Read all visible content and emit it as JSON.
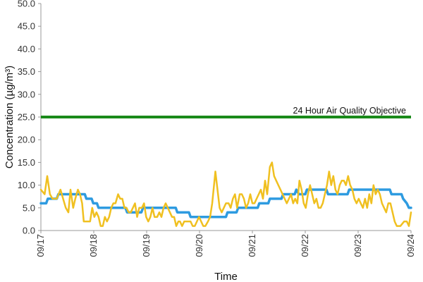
{
  "chart_data": {
    "type": "line",
    "xlabel": "Time",
    "ylabel": "Concentration (µg/m³)",
    "ylim": [
      0,
      50
    ],
    "yticks": [
      "0.0",
      "5.0",
      "10.0",
      "15.0",
      "20.0",
      "25.0",
      "30.0",
      "35.0",
      "40.0",
      "45.0",
      "50.0"
    ],
    "xlim": [
      0,
      7
    ],
    "xticks": [
      {
        "label": "09/17",
        "x": 0
      },
      {
        "label": "09/18",
        "x": 1
      },
      {
        "label": "09/19",
        "x": 2
      },
      {
        "label": "09/20",
        "x": 3
      },
      {
        "label": "09/21",
        "x": 4
      },
      {
        "label": "09/22",
        "x": 5
      },
      {
        "label": "09/23",
        "x": 6
      },
      {
        "label": "09/24",
        "x": 7
      }
    ],
    "grid": false,
    "reference_line": {
      "label": "24 Hour Air Quality Objective",
      "y": 25,
      "color": "#1a8a1a"
    },
    "series": [
      {
        "color": "#2e9be0",
        "points": [
          [
            0.0,
            6
          ],
          [
            0.1,
            6
          ],
          [
            0.13,
            7
          ],
          [
            0.3,
            7
          ],
          [
            0.33,
            8
          ],
          [
            0.83,
            8
          ],
          [
            0.86,
            7
          ],
          [
            0.96,
            7
          ],
          [
            0.99,
            6
          ],
          [
            1.06,
            6
          ],
          [
            1.09,
            5
          ],
          [
            1.6,
            5
          ],
          [
            1.63,
            4
          ],
          [
            1.9,
            4
          ],
          [
            1.93,
            5
          ],
          [
            2.55,
            5
          ],
          [
            2.58,
            4
          ],
          [
            2.8,
            4
          ],
          [
            2.83,
            3
          ],
          [
            3.5,
            3
          ],
          [
            3.53,
            4
          ],
          [
            3.7,
            4
          ],
          [
            3.73,
            5
          ],
          [
            4.1,
            5
          ],
          [
            4.13,
            6
          ],
          [
            4.3,
            6
          ],
          [
            4.33,
            7
          ],
          [
            4.55,
            7
          ],
          [
            4.58,
            8
          ],
          [
            4.8,
            8
          ],
          [
            4.83,
            9
          ],
          [
            4.88,
            8
          ],
          [
            5.0,
            8
          ],
          [
            5.03,
            9
          ],
          [
            5.4,
            9
          ],
          [
            5.43,
            8
          ],
          [
            5.8,
            8
          ],
          [
            5.83,
            9
          ],
          [
            6.6,
            9
          ],
          [
            6.63,
            8
          ],
          [
            6.82,
            8
          ],
          [
            6.85,
            7
          ],
          [
            6.92,
            6
          ],
          [
            6.96,
            5
          ],
          [
            7.0,
            5
          ]
        ]
      },
      {
        "color": "#f0c020",
        "points": [
          [
            0.0,
            9
          ],
          [
            0.07,
            8
          ],
          [
            0.12,
            12
          ],
          [
            0.17,
            8
          ],
          [
            0.22,
            7
          ],
          [
            0.3,
            7
          ],
          [
            0.37,
            9
          ],
          [
            0.42,
            7
          ],
          [
            0.47,
            5
          ],
          [
            0.52,
            4
          ],
          [
            0.56,
            9
          ],
          [
            0.61,
            5
          ],
          [
            0.65,
            7
          ],
          [
            0.7,
            9
          ],
          [
            0.74,
            8
          ],
          [
            0.78,
            6
          ],
          [
            0.81,
            2
          ],
          [
            0.88,
            2
          ],
          [
            0.93,
            2
          ],
          [
            0.97,
            5
          ],
          [
            1.01,
            3
          ],
          [
            1.05,
            4
          ],
          [
            1.09,
            3
          ],
          [
            1.13,
            1
          ],
          [
            1.17,
            1
          ],
          [
            1.21,
            3
          ],
          [
            1.25,
            2
          ],
          [
            1.29,
            3
          ],
          [
            1.33,
            5
          ],
          [
            1.37,
            6
          ],
          [
            1.41,
            6
          ],
          [
            1.46,
            8
          ],
          [
            1.5,
            7
          ],
          [
            1.54,
            7
          ],
          [
            1.58,
            5
          ],
          [
            1.62,
            5
          ],
          [
            1.66,
            4
          ],
          [
            1.7,
            4
          ],
          [
            1.74,
            5
          ],
          [
            1.78,
            6
          ],
          [
            1.82,
            3
          ],
          [
            1.86,
            5
          ],
          [
            1.91,
            5
          ],
          [
            1.95,
            6
          ],
          [
            1.99,
            3
          ],
          [
            2.03,
            2
          ],
          [
            2.07,
            3
          ],
          [
            2.11,
            5
          ],
          [
            2.15,
            3
          ],
          [
            2.2,
            3
          ],
          [
            2.24,
            4
          ],
          [
            2.28,
            3
          ],
          [
            2.32,
            5
          ],
          [
            2.36,
            6
          ],
          [
            2.4,
            5
          ],
          [
            2.44,
            4
          ],
          [
            2.48,
            3
          ],
          [
            2.52,
            3
          ],
          [
            2.56,
            1
          ],
          [
            2.6,
            2
          ],
          [
            2.63,
            2
          ],
          [
            2.67,
            1
          ],
          [
            2.71,
            2
          ],
          [
            2.75,
            2
          ],
          [
            2.79,
            2
          ],
          [
            2.83,
            2
          ],
          [
            2.87,
            1
          ],
          [
            2.91,
            1
          ],
          [
            2.95,
            2
          ],
          [
            2.99,
            3
          ],
          [
            3.03,
            2
          ],
          [
            3.07,
            1
          ],
          [
            3.11,
            1
          ],
          [
            3.16,
            2
          ],
          [
            3.2,
            3
          ],
          [
            3.24,
            6
          ],
          [
            3.3,
            13
          ],
          [
            3.34,
            9
          ],
          [
            3.38,
            5
          ],
          [
            3.42,
            4
          ],
          [
            3.46,
            5
          ],
          [
            3.5,
            6
          ],
          [
            3.55,
            6
          ],
          [
            3.59,
            5
          ],
          [
            3.63,
            7
          ],
          [
            3.67,
            8
          ],
          [
            3.71,
            5
          ],
          [
            3.76,
            8
          ],
          [
            3.8,
            8
          ],
          [
            3.84,
            7
          ],
          [
            3.88,
            5
          ],
          [
            3.92,
            6
          ],
          [
            3.96,
            8
          ],
          [
            4.0,
            6
          ],
          [
            4.04,
            6
          ],
          [
            4.08,
            7
          ],
          [
            4.12,
            8
          ],
          [
            4.16,
            9
          ],
          [
            4.2,
            7
          ],
          [
            4.24,
            11
          ],
          [
            4.28,
            8
          ],
          [
            4.33,
            14
          ],
          [
            4.37,
            15
          ],
          [
            4.41,
            12
          ],
          [
            4.45,
            11
          ],
          [
            4.49,
            10
          ],
          [
            4.53,
            9
          ],
          [
            4.57,
            8
          ],
          [
            4.61,
            7
          ],
          [
            4.65,
            6
          ],
          [
            4.69,
            7
          ],
          [
            4.73,
            8
          ],
          [
            4.77,
            6
          ],
          [
            4.81,
            7
          ],
          [
            4.85,
            6
          ],
          [
            4.89,
            11
          ],
          [
            4.93,
            9
          ],
          [
            4.97,
            6
          ],
          [
            5.01,
            5
          ],
          [
            5.05,
            8
          ],
          [
            5.09,
            10
          ],
          [
            5.13,
            8
          ],
          [
            5.17,
            6
          ],
          [
            5.21,
            7
          ],
          [
            5.25,
            5
          ],
          [
            5.29,
            5
          ],
          [
            5.33,
            6
          ],
          [
            5.37,
            8
          ],
          [
            5.41,
            10
          ],
          [
            5.45,
            13
          ],
          [
            5.49,
            10
          ],
          [
            5.53,
            12
          ],
          [
            5.57,
            9
          ],
          [
            5.61,
            8
          ],
          [
            5.65,
            10
          ],
          [
            5.69,
            11
          ],
          [
            5.73,
            11
          ],
          [
            5.77,
            10
          ],
          [
            5.81,
            12
          ],
          [
            5.85,
            10
          ],
          [
            5.89,
            9
          ],
          [
            5.93,
            7
          ],
          [
            5.97,
            6
          ],
          [
            6.01,
            7
          ],
          [
            6.05,
            6
          ],
          [
            6.09,
            5
          ],
          [
            6.13,
            7
          ],
          [
            6.17,
            5
          ],
          [
            6.21,
            8
          ],
          [
            6.25,
            6
          ],
          [
            6.29,
            10
          ],
          [
            6.33,
            8
          ],
          [
            6.37,
            9
          ],
          [
            6.41,
            8
          ],
          [
            6.45,
            6
          ],
          [
            6.49,
            5
          ],
          [
            6.53,
            4
          ],
          [
            6.57,
            6
          ],
          [
            6.61,
            6
          ],
          [
            6.65,
            4
          ],
          [
            6.69,
            2
          ],
          [
            6.73,
            1
          ],
          [
            6.8,
            1
          ],
          [
            6.87,
            2
          ],
          [
            6.92,
            2
          ],
          [
            6.96,
            1
          ],
          [
            7.0,
            4
          ]
        ]
      }
    ]
  }
}
